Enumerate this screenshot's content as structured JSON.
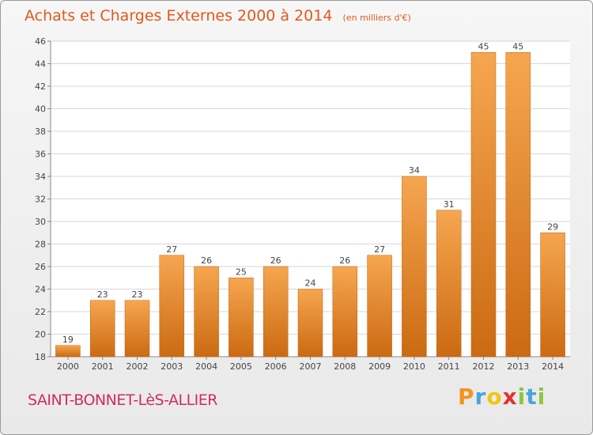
{
  "chart_data": {
    "type": "bar",
    "title": "Achats et Charges Externes 2000 à 2014",
    "subtitle": "(en milliers d'€)",
    "categories": [
      "2000",
      "2001",
      "2002",
      "2003",
      "2004",
      "2005",
      "2006",
      "2007",
      "2008",
      "2009",
      "2010",
      "2011",
      "2012",
      "2013",
      "2014"
    ],
    "values": [
      19,
      23,
      23,
      27,
      26,
      25,
      26,
      24,
      26,
      27,
      34,
      31,
      45,
      45,
      29
    ],
    "ylim": [
      18,
      46
    ],
    "yticks": [
      18,
      20,
      22,
      24,
      26,
      28,
      30,
      32,
      34,
      36,
      38,
      40,
      42,
      44,
      46
    ],
    "grid": true,
    "bar_color_top": "#f6a650",
    "bar_color_bottom": "#cb6a12"
  },
  "footer": {
    "commune": "SAINT-BONNET-LèS-ALLIER",
    "commune_color": "#cc2f5a"
  },
  "logo": {
    "text": "Proxiti",
    "letter_colors": [
      "#f39322",
      "#4aa3df",
      "#f2c511",
      "#e5312b",
      "#8cc63f",
      "#4aa3df",
      "#8cc63f"
    ]
  }
}
